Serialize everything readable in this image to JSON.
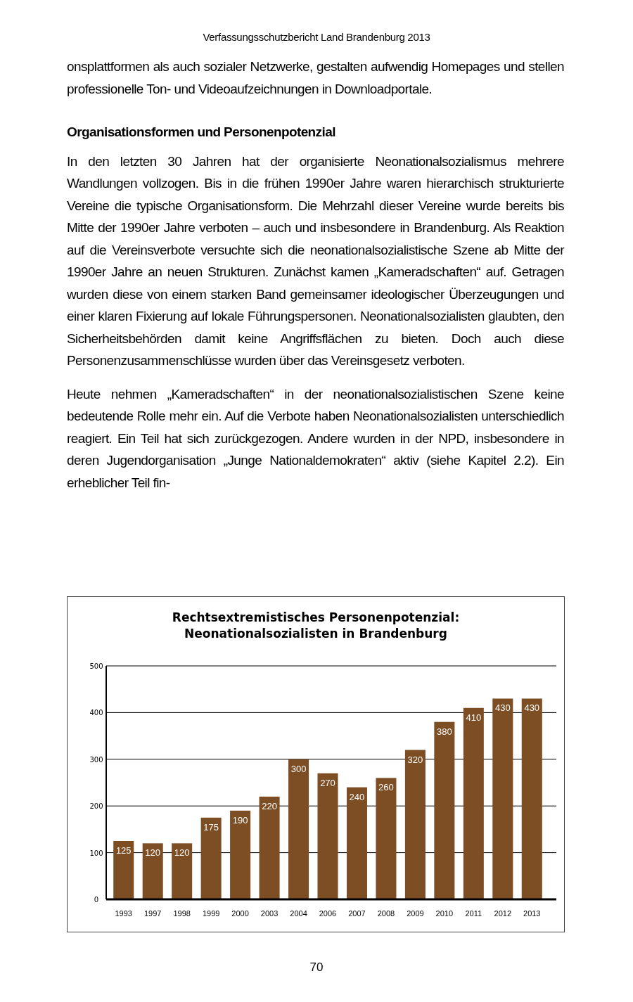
{
  "chart_data": {
    "type": "bar",
    "title": "Rechtsextremistisches Personenpotenzial: Neonationalsozialisten in Brandenburg",
    "categories": [
      "1993",
      "1997",
      "1998",
      "1999",
      "2000",
      "2003",
      "2004",
      "2006",
      "2007",
      "2008",
      "2009",
      "2010",
      "2011",
      "2012",
      "2013"
    ],
    "values": [
      125,
      120,
      120,
      175,
      190,
      220,
      300,
      270,
      240,
      260,
      320,
      380,
      410,
      430,
      430
    ],
    "color": "#7d4e24",
    "ylim": [
      0,
      500
    ],
    "yticks": [
      0,
      100,
      200,
      300,
      400,
      500
    ],
    "grid": "y",
    "data_labels": true,
    "annotations": [
      "Verfassungsschutzbericht Land Brandenburg 2013",
      "onsplattformen als auch sozialer Netzwerke, gestalten aufwendig Homepages und stellen professionelle Ton- und Videoaufzeichnungen in Downloadportale.",
      "Organisationsformen und Personenpotenzial",
      "In den letzten 30 Jahren hat der organisierte Neonationalsozialismus mehrere Wandlungen vollzogen. Bis in die frühen 1990er Jahre waren hierarchisch strukturierte Vereine die typische Organisationsform. Die Mehrzahl dieser Vereine wurde bereits bis Mitte der 1990er Jahre verboten – auch und insbesondere in Brandenburg. Als Reaktion auf die Vereinsverbote versuchte sich die neonationalsozialistische Szene ab Mitte der 1990er Jahre an neuen Strukturen. Zunächst kamen „Kameradschaften“ auf. Getragen wurden diese von einem starken Band gemeinsamer ideologischer Überzeugungen und einer klaren Fixierung auf lokale Führungspersonen. Neonationalsozialisten glaubten, den Sicherheitsbehörden damit keine Angriffsflächen zu bieten. Doch auch diese Personenzusammenschlüsse wurden über das Vereinsgesetz verboten.",
      "Heute nehmen „Kameradschaften“ in der neonationalsozialistischen Szene keine bedeutende Rolle mehr ein. Auf die Verbote haben Neonationalsozialisten unterschiedlich reagiert. Ein Teil hat sich zurückgezogen. Andere wurden in der NPD, insbesondere in deren Jugendorganisation „Junge Nationaldemokraten“ aktiv (siehe Kapitel 2.2). Ein erheblicher Teil fin-",
      "70"
    ]
  }
}
